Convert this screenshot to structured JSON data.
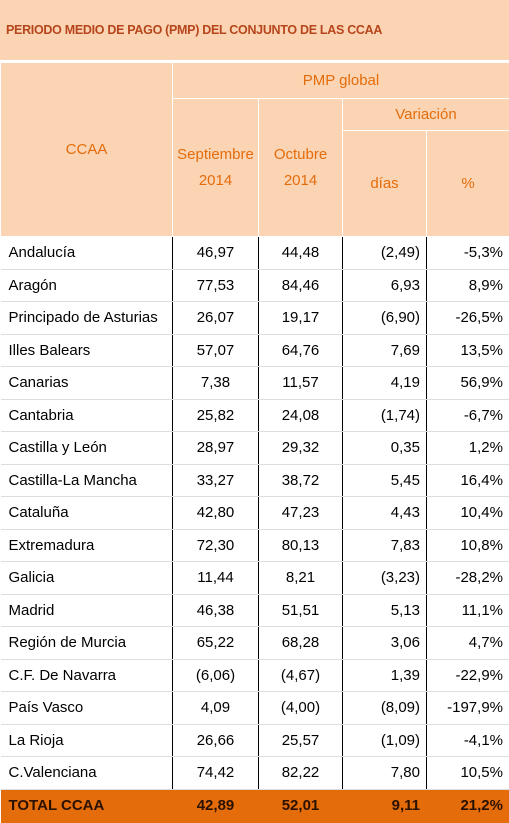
{
  "header": {
    "title": "PERIODO MEDIO DE PAGO (PMP) DEL CONJUNTO DE LAS CCAA"
  },
  "table": {
    "columns": {
      "ccaa": "CCAA",
      "group": "PMP global",
      "september": "Septiembre 2014",
      "october": "Octubre 2014",
      "variation": "Variación",
      "days": "días",
      "percent": "%"
    },
    "rows": [
      [
        "Andalucía",
        "46,97",
        "44,48",
        "(2,49)",
        "-5,3%"
      ],
      [
        "Aragón",
        "77,53",
        "84,46",
        "6,93",
        "8,9%"
      ],
      [
        "Principado de Asturias",
        "26,07",
        "19,17",
        "(6,90)",
        "-26,5%"
      ],
      [
        "Illes Balears",
        "57,07",
        "64,76",
        "7,69",
        "13,5%"
      ],
      [
        "Canarias",
        "7,38",
        "11,57",
        "4,19",
        "56,9%"
      ],
      [
        "Cantabria",
        "25,82",
        "24,08",
        "(1,74)",
        "-6,7%"
      ],
      [
        "Castilla y León",
        "28,97",
        "29,32",
        "0,35",
        "1,2%"
      ],
      [
        "Castilla-La Mancha",
        "33,27",
        "38,72",
        "5,45",
        "16,4%"
      ],
      [
        "Cataluña",
        "42,80",
        "47,23",
        "4,43",
        "10,4%"
      ],
      [
        "Extremadura",
        "72,30",
        "80,13",
        "7,83",
        "10,8%"
      ],
      [
        "Galicia",
        "11,44",
        "8,21",
        "(3,23)",
        "-28,2%"
      ],
      [
        "Madrid",
        "46,38",
        "51,51",
        "5,13",
        "11,1%"
      ],
      [
        "Región de Murcia",
        "65,22",
        "68,28",
        "3,06",
        "4,7%"
      ],
      [
        "C.F. De Navarra",
        "(6,06)",
        "(4,67)",
        "1,39",
        "-22,9%"
      ],
      [
        "País Vasco",
        "4,09",
        "(4,00)",
        "(8,09)",
        "-197,9%"
      ],
      [
        "La Rioja",
        "26,66",
        "25,57",
        "(1,09)",
        "-4,1%"
      ],
      [
        "C.Valenciana",
        "74,42",
        "82,22",
        "7,80",
        "10,5%"
      ]
    ],
    "total": [
      "TOTAL CCAA",
      "42,89",
      "52,01",
      "9,11",
      "21,2%"
    ]
  }
}
